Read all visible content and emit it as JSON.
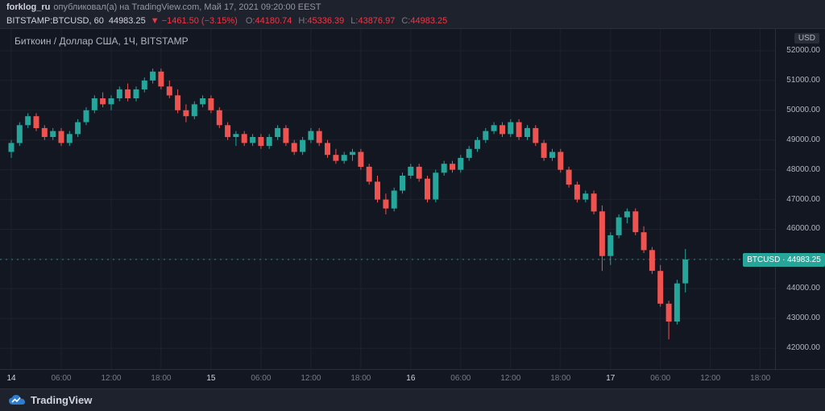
{
  "header": {
    "publisher": "forklog_ru",
    "publish_info": "опубликовал(а) на TradingView.com, Май 17, 2021 09:20:00 EEST",
    "symbol_line": {
      "symbol": "BITSTAMP:BTCUSD, 60",
      "last_price": "44983.25",
      "change": "▼ −1461.50 (−3.15%)",
      "o_label": "O:",
      "o": "44180.74",
      "h_label": "H:",
      "h": "45336.39",
      "l_label": "L:",
      "l": "43876.97",
      "c_label": "C:",
      "c": "44983.25"
    }
  },
  "chart": {
    "title": "Биткоин / Доллар США, 1Ч, BITSTAMP",
    "currency_label": "USD",
    "price_tag": {
      "symbol": "BTCUSD",
      "sep": "∙",
      "price": "44983.25"
    }
  },
  "footer": {
    "brand": "TradingView"
  },
  "chart_data": {
    "type": "candlestick",
    "title": "Биткоин / Доллар США, 1Ч, BITSTAMP",
    "symbol": "BTCUSD",
    "exchange": "BITSTAMP",
    "interval_hours": 1,
    "start_time": "2021-05-14 00:00 EEST",
    "last_price": 44983.25,
    "current_candle": {
      "open": 44180.74,
      "high": 45336.39,
      "low": 43876.97,
      "close": 44983.25
    },
    "colors": {
      "up": "#26a69a",
      "down": "#ef5350",
      "grid": "#1e222d",
      "last_price_line": "#26a69a"
    },
    "price_axis": {
      "min": 41300,
      "max": 52730,
      "ticks": [
        52000,
        51000,
        50000,
        49000,
        48000,
        47000,
        46000,
        45000,
        44000,
        43000,
        42000
      ]
    },
    "time_labels": [
      {
        "text": "14",
        "hour": 0,
        "major": true
      },
      {
        "text": "06:00",
        "hour": 6,
        "major": false
      },
      {
        "text": "12:00",
        "hour": 12,
        "major": false
      },
      {
        "text": "18:00",
        "hour": 18,
        "major": false
      },
      {
        "text": "15",
        "hour": 24,
        "major": true
      },
      {
        "text": "06:00",
        "hour": 30,
        "major": false
      },
      {
        "text": "12:00",
        "hour": 36,
        "major": false
      },
      {
        "text": "18:00",
        "hour": 42,
        "major": false
      },
      {
        "text": "16",
        "hour": 48,
        "major": true
      },
      {
        "text": "06:00",
        "hour": 54,
        "major": false
      },
      {
        "text": "12:00",
        "hour": 60,
        "major": false
      },
      {
        "text": "18:00",
        "hour": 66,
        "major": false
      },
      {
        "text": "17",
        "hour": 72,
        "major": true
      },
      {
        "text": "06:00",
        "hour": 78,
        "major": false
      },
      {
        "text": "12:00",
        "hour": 84,
        "major": false
      },
      {
        "text": "18:00",
        "hour": 90,
        "major": false
      }
    ],
    "candles": [
      [
        48600,
        49000,
        48400,
        48900
      ],
      [
        48900,
        49600,
        48800,
        49500
      ],
      [
        49500,
        49900,
        49400,
        49800
      ],
      [
        49800,
        49900,
        49300,
        49400
      ],
      [
        49400,
        49500,
        49000,
        49100
      ],
      [
        49100,
        49400,
        49000,
        49300
      ],
      [
        49300,
        49400,
        48800,
        48900
      ],
      [
        48900,
        49300,
        48800,
        49200
      ],
      [
        49200,
        49700,
        49100,
        49600
      ],
      [
        49600,
        50100,
        49500,
        50000
      ],
      [
        50000,
        50500,
        49900,
        50400
      ],
      [
        50400,
        50600,
        50100,
        50200
      ],
      [
        50200,
        50500,
        50000,
        50400
      ],
      [
        50400,
        50800,
        50300,
        50700
      ],
      [
        50700,
        50900,
        50300,
        50400
      ],
      [
        50400,
        50800,
        50300,
        50700
      ],
      [
        50700,
        51100,
        50600,
        51000
      ],
      [
        51000,
        51400,
        50900,
        51300
      ],
      [
        51300,
        51400,
        50700,
        50800
      ],
      [
        50800,
        51000,
        50400,
        50500
      ],
      [
        50500,
        50700,
        49900,
        50000
      ],
      [
        50000,
        50200,
        49600,
        49800
      ],
      [
        49800,
        50300,
        49700,
        50200
      ],
      [
        50200,
        50500,
        50100,
        50400
      ],
      [
        50400,
        50500,
        49900,
        50000
      ],
      [
        50000,
        50100,
        49400,
        49500
      ],
      [
        49500,
        49600,
        49000,
        49100
      ],
      [
        49100,
        49300,
        48800,
        49200
      ],
      [
        49200,
        49300,
        48800,
        48900
      ],
      [
        48900,
        49200,
        48800,
        49100
      ],
      [
        49100,
        49200,
        48700,
        48800
      ],
      [
        48800,
        49200,
        48700,
        49100
      ],
      [
        49100,
        49500,
        49000,
        49400
      ],
      [
        49400,
        49500,
        48800,
        48900
      ],
      [
        48900,
        49000,
        48500,
        48600
      ],
      [
        48600,
        49100,
        48500,
        49000
      ],
      [
        49000,
        49400,
        48900,
        49300
      ],
      [
        49300,
        49400,
        48800,
        48900
      ],
      [
        48900,
        49000,
        48400,
        48500
      ],
      [
        48500,
        48700,
        48200,
        48300
      ],
      [
        48300,
        48600,
        48200,
        48500
      ],
      [
        48500,
        48700,
        48300,
        48600
      ],
      [
        48600,
        48700,
        48000,
        48100
      ],
      [
        48100,
        48200,
        47500,
        47600
      ],
      [
        47600,
        47800,
        46900,
        47000
      ],
      [
        47000,
        47200,
        46500,
        46700
      ],
      [
        46700,
        47400,
        46600,
        47300
      ],
      [
        47300,
        47900,
        47200,
        47800
      ],
      [
        47800,
        48200,
        47700,
        48100
      ],
      [
        48100,
        48200,
        47600,
        47700
      ],
      [
        47700,
        47800,
        46900,
        47000
      ],
      [
        47000,
        48000,
        46900,
        47900
      ],
      [
        47900,
        48300,
        47800,
        48200
      ],
      [
        48200,
        48300,
        47900,
        48000
      ],
      [
        48000,
        48500,
        47900,
        48400
      ],
      [
        48400,
        48800,
        48300,
        48700
      ],
      [
        48700,
        49100,
        48600,
        49000
      ],
      [
        49000,
        49400,
        48900,
        49300
      ],
      [
        49300,
        49600,
        49200,
        49500
      ],
      [
        49500,
        49600,
        49100,
        49200
      ],
      [
        49200,
        49700,
        49100,
        49600
      ],
      [
        49600,
        49700,
        49000,
        49100
      ],
      [
        49100,
        49500,
        49000,
        49400
      ],
      [
        49400,
        49500,
        48800,
        48900
      ],
      [
        48900,
        49000,
        48300,
        48400
      ],
      [
        48400,
        48700,
        48300,
        48600
      ],
      [
        48600,
        48700,
        47900,
        48000
      ],
      [
        48000,
        48100,
        47400,
        47500
      ],
      [
        47500,
        47600,
        46900,
        47000
      ],
      [
        47000,
        47300,
        46900,
        47200
      ],
      [
        47200,
        47300,
        46500,
        46600
      ],
      [
        46600,
        46800,
        44600,
        45100
      ],
      [
        45100,
        45900,
        44800,
        45800
      ],
      [
        45800,
        46500,
        45700,
        46400
      ],
      [
        46400,
        46700,
        46200,
        46600
      ],
      [
        46600,
        46700,
        45800,
        45900
      ],
      [
        45900,
        46100,
        45200,
        45300
      ],
      [
        45300,
        45400,
        44500,
        44600
      ],
      [
        44600,
        44800,
        43400,
        43500
      ],
      [
        43500,
        43600,
        42300,
        42900
      ],
      [
        42900,
        44300,
        42800,
        44180
      ],
      [
        44180.74,
        45336.39,
        43876.97,
        44983.25
      ]
    ]
  }
}
